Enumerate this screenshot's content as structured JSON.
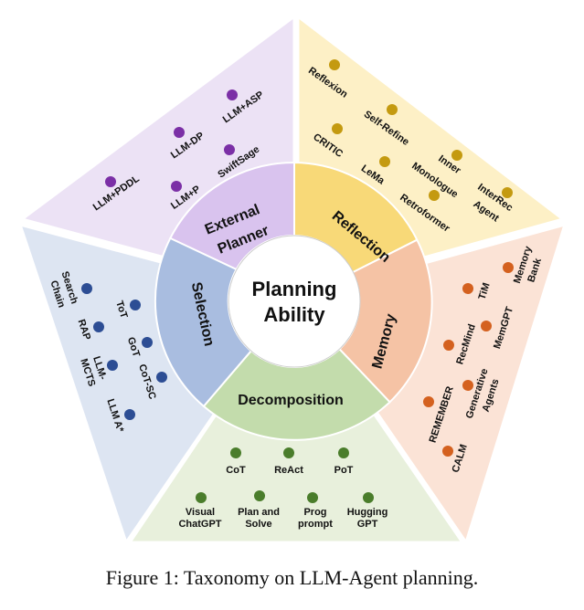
{
  "center": {
    "line1": "Planning",
    "line2": "Ability"
  },
  "caption": "Figure 1: Taxonomy on LLM-Agent planning.",
  "colors": {
    "external_planner": {
      "bg": "#ece2f5",
      "ring": "#d9c3ee",
      "dot": "#7b2fa6"
    },
    "reflection": {
      "bg": "#fdf0c6",
      "ring": "#f8d978",
      "dot": "#c49a10"
    },
    "memory": {
      "bg": "#fbe3d6",
      "ring": "#f5c3a5",
      "dot": "#d4611f"
    },
    "decomposition": {
      "bg": "#e8f0dc",
      "ring": "#c3dcac",
      "dot": "#4a7d2b"
    },
    "selection": {
      "bg": "#dde5f2",
      "ring": "#a9bde0",
      "dot": "#2c4d94"
    }
  },
  "categories": {
    "external_planner": {
      "name1": "External",
      "name2": "Planner",
      "items": [
        "LLM+PDDL",
        "LLM-DP",
        "LLM+ASP",
        "LLM+P",
        "SwiftSage"
      ]
    },
    "reflection": {
      "name": "Reflection",
      "items": [
        "Reflexion",
        "Self-Refine",
        "CRITIC",
        "Inner",
        "Monologue",
        "LeMa",
        "Retroformer",
        "InterRec",
        "Agent"
      ]
    },
    "memory": {
      "name": "Memory",
      "items": [
        "Memory",
        "Bank",
        "TiM",
        "RecMind",
        "MemGPT",
        "REMEMBER",
        "Generative",
        "Agents",
        "CALM"
      ]
    },
    "decomposition": {
      "name": "Decomposition",
      "items": [
        "CoT",
        "ReAct",
        "PoT",
        "Visual",
        "ChatGPT",
        "Plan and",
        "Solve",
        "Prog",
        "prompt",
        "Hugging",
        "GPT"
      ]
    },
    "selection": {
      "name": "Selection",
      "items": [
        "Search",
        "Chain",
        "ToT",
        "RAP",
        "GoT",
        "LLM-",
        "MCTS",
        "CoT-SC",
        "LLM A*"
      ]
    }
  }
}
